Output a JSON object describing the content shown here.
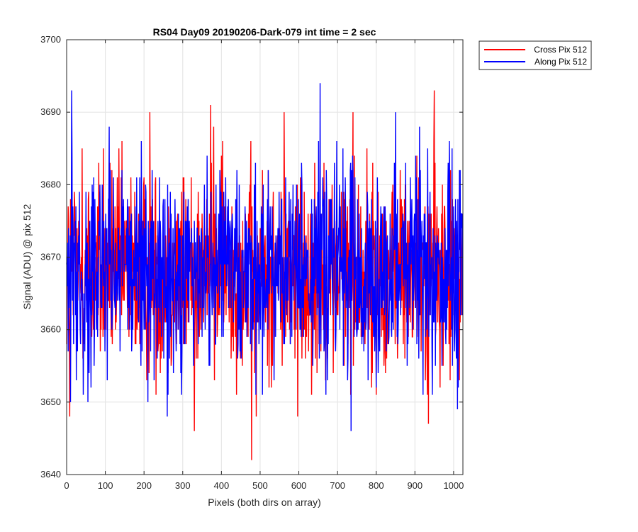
{
  "chart_data": {
    "type": "line",
    "title": "RS04 Day09 20190206-Dark-079 int time = 2 sec",
    "xlabel": "Pixels (both dirs on array)",
    "ylabel": "Signal (ADU) @ pix 512",
    "xlim": [
      0,
      1024
    ],
    "ylim": [
      3640,
      3700
    ],
    "xticks": [
      0,
      100,
      200,
      300,
      400,
      500,
      600,
      700,
      800,
      900,
      1000
    ],
    "yticks": [
      3640,
      3650,
      3660,
      3670,
      3680,
      3690,
      3700
    ],
    "grid": true,
    "legend_position": "outside-top-right",
    "noise": {
      "points": 1024,
      "mean": 3668,
      "spread": 7,
      "step": 1
    },
    "series": [
      {
        "name": "Cross Pix 512",
        "color": "#ff0000",
        "seed": 12345,
        "peaks": [
          [
            8,
            3648
          ],
          [
            40,
            3685
          ],
          [
            95,
            3685
          ],
          [
            215,
            3690
          ],
          [
            330,
            3646
          ],
          [
            372,
            3691
          ],
          [
            380,
            3688
          ],
          [
            478,
            3642
          ],
          [
            490,
            3648
          ],
          [
            562,
            3690
          ],
          [
            597,
            3648
          ],
          [
            740,
            3690
          ],
          [
            800,
            3651
          ],
          [
            935,
            3647
          ],
          [
            950,
            3693
          ],
          [
            1015,
            3653
          ]
        ]
      },
      {
        "name": "Along Pix 512",
        "color": "#0000ff",
        "seed": 67890,
        "peaks": [
          [
            13,
            3693
          ],
          [
            10,
            3650
          ],
          [
            55,
            3650
          ],
          [
            110,
            3688
          ],
          [
            210,
            3650
          ],
          [
            260,
            3648
          ],
          [
            262,
            3651
          ],
          [
            440,
            3682
          ],
          [
            655,
            3694
          ],
          [
            670,
            3651
          ],
          [
            735,
            3646
          ],
          [
            850,
            3690
          ],
          [
            912,
            3688
          ],
          [
            1010,
            3649
          ]
        ]
      }
    ]
  }
}
